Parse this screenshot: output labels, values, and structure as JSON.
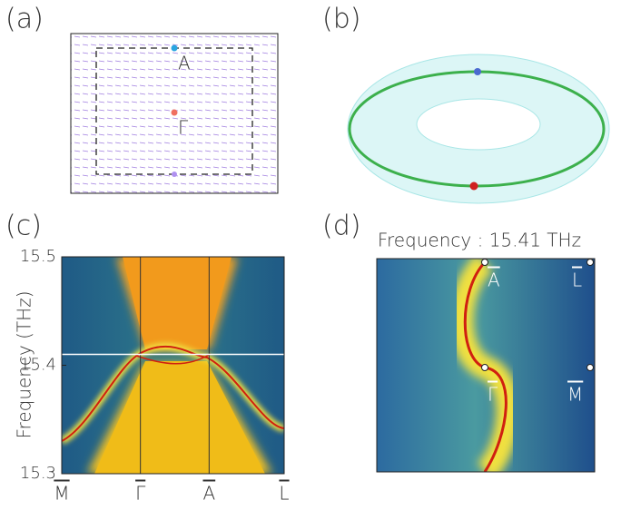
{
  "panels": {
    "a": {
      "label": "(a)",
      "points": [
        "A",
        "Γ"
      ]
    },
    "b": {
      "label": "(b)"
    },
    "c": {
      "label": "(c)"
    },
    "d": {
      "label": "(d)",
      "title": "Frequency :  15.41 THz",
      "points": [
        "A",
        "L",
        "Γ",
        "M"
      ]
    }
  },
  "chart_data": {
    "type": "band",
    "ylabel": "Frequency (THz)",
    "categories": [
      "M",
      "Γ",
      "A",
      "L"
    ],
    "ylim": [
      15.3,
      15.5
    ],
    "yticks": [
      15.3,
      15.4,
      15.5
    ],
    "frequency_line": 15.41
  }
}
